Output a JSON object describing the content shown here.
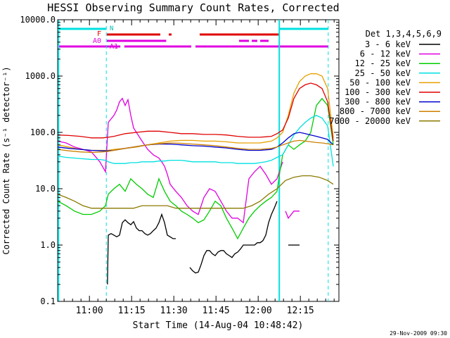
{
  "chart_data": {
    "type": "line",
    "title": "HESSI Observing Summary Count Rates, Corrected",
    "xlabel": "Start Time (14-Aug-04 10:48:42)",
    "ylabel": "Corrected Count Rate (s⁻¹ detector⁻¹)",
    "y_scale": "log",
    "ylim": [
      0.1,
      10000.0
    ],
    "xlim_minutes_after_start": [
      0,
      100
    ],
    "x_ticks": [
      "11:00",
      "11:15",
      "11:30",
      "11:45",
      "12:00",
      "12:15"
    ],
    "y_ticks": [
      "0.1",
      "1.0",
      "10.0",
      "100.0",
      "1000.0",
      "10000.0"
    ],
    "timestamp": "29-Nov-2009 09:30",
    "legend_title": "Det 1,3,4,5,6,9",
    "legend_position": "right",
    "flag_labels": [
      "N",
      "F",
      "A0",
      "A1"
    ],
    "series": [
      {
        "name": "3 - 6 keV",
        "color": "#000000",
        "segments": [
          {
            "x": [
              17.7,
              18,
              19,
              20,
              21,
              22,
              23,
              24,
              25,
              26,
              27,
              28,
              29,
              30,
              31,
              32,
              33,
              34,
              35,
              36,
              37,
              38,
              39,
              40,
              41,
              42
            ],
            "y": [
              0.2,
              1.5,
              1.6,
              1.5,
              1.4,
              1.5,
              2.5,
              2.8,
              2.5,
              2.3,
              2.6,
              2.0,
              1.8,
              1.8,
              1.6,
              1.5,
              1.6,
              1.8,
              2.0,
              2.5,
              3.5,
              2.5,
              1.5,
              1.4,
              1.3,
              1.3
            ]
          },
          {
            "x": [
              47,
              48,
              49,
              50,
              51,
              52,
              53,
              54,
              55,
              56,
              57,
              58,
              59,
              60,
              61,
              62,
              63,
              64,
              65,
              66,
              67,
              68,
              69,
              70,
              71,
              72,
              73,
              74,
              75,
              76,
              77,
              78
            ],
            "y": [
              0.4,
              0.35,
              0.32,
              0.33,
              0.45,
              0.65,
              0.8,
              0.8,
              0.7,
              0.65,
              0.75,
              0.8,
              0.8,
              0.7,
              0.65,
              0.6,
              0.7,
              0.75,
              0.85,
              1.0,
              1.0,
              1.0,
              1.0,
              1.0,
              1.1,
              1.1,
              1.2,
              1.5,
              2.5,
              3.5,
              4.5,
              6.0
            ]
          },
          {
            "x": [
              82,
              83,
              84,
              85,
              86
            ],
            "y": [
              1.0,
              1.0,
              1.0,
              1.0,
              1.0
            ]
          }
        ]
      },
      {
        "name": "6 - 12 keV",
        "color": "#e000e0",
        "segments": [
          {
            "x": [
              0,
              3,
              6,
              9,
              12,
              15,
              17,
              18,
              20,
              21,
              22,
              23,
              24,
              25,
              26,
              27,
              28,
              30,
              32,
              34,
              36,
              37,
              38,
              39,
              40,
              42,
              44,
              46,
              48,
              50,
              52,
              54,
              56,
              58,
              60,
              62,
              64,
              66,
              68,
              70,
              72,
              74,
              76,
              78,
              80
            ],
            "y": [
              70,
              65,
              55,
              50,
              45,
              30,
              20,
              150,
              200,
              250,
              350,
              400,
              300,
              380,
              200,
              120,
              100,
              70,
              50,
              40,
              35,
              30,
              25,
              18,
              12,
              9,
              7,
              5,
              4,
              3.5,
              7,
              10,
              9,
              6,
              4,
              3,
              3,
              2.5,
              15,
              20,
              25,
              18,
              12,
              15,
              30
            ]
          },
          {
            "x": [
              81,
              82,
              84,
              86
            ],
            "y": [
              4,
              3,
              4,
              4
            ]
          }
        ]
      },
      {
        "name": "12 - 25 keV",
        "color": "#00cc00",
        "segments": [
          {
            "x": [
              0,
              3,
              6,
              9,
              12,
              15,
              17,
              18,
              20,
              22,
              24,
              26,
              28,
              30,
              32,
              34,
              36,
              38,
              40,
              42,
              44,
              46,
              48,
              50,
              52,
              54,
              56,
              58,
              60,
              62,
              64,
              66,
              68,
              70,
              72,
              74,
              76,
              78,
              79,
              80,
              82,
              84,
              86,
              88,
              90,
              92,
              94,
              96,
              98
            ],
            "y": [
              6,
              5,
              4,
              3.5,
              3.5,
              4,
              5,
              8,
              10,
              12,
              9,
              15,
              12,
              10,
              8,
              7,
              15,
              9,
              6,
              5,
              4,
              3.5,
              3,
              2.5,
              2.8,
              4,
              6,
              5,
              3,
              2,
              1.3,
              2,
              3,
              4,
              5,
              6,
              7,
              9,
              20,
              40,
              60,
              50,
              60,
              70,
              100,
              300,
              400,
              300,
              60
            ]
          }
        ]
      },
      {
        "name": "25 - 50 keV",
        "color": "#00e0e0",
        "segments": [
          {
            "x": [
              0,
              3,
              6,
              9,
              12,
              15,
              17,
              18,
              20,
              22,
              24,
              26,
              28,
              30,
              32,
              34,
              36,
              38,
              40,
              42,
              44,
              46,
              48,
              50,
              52,
              54,
              56,
              58,
              60,
              62,
              64,
              66,
              68,
              70,
              72,
              74,
              76,
              78,
              80,
              82,
              84,
              86,
              88,
              90,
              92,
              94,
              96,
              98
            ],
            "y": [
              38,
              36,
              35,
              34,
              33,
              33,
              32,
              30,
              28,
              28,
              28,
              29,
              29,
              30,
              30,
              30,
              31,
              31,
              32,
              32,
              32,
              31,
              30,
              30,
              30,
              30,
              30,
              29,
              29,
              29,
              28,
              28,
              28,
              28,
              29,
              30,
              32,
              36,
              40,
              60,
              90,
              120,
              150,
              180,
              200,
              180,
              130,
              25
            ]
          }
        ]
      },
      {
        "name": "50 - 100 keV",
        "color": "#e6a000",
        "segments": [
          {
            "x": [
              0,
              4,
              8,
              12,
              16,
              18,
              20,
              24,
              28,
              32,
              36,
              40,
              44,
              48,
              52,
              56,
              60,
              64,
              68,
              72,
              76,
              78,
              80,
              82,
              84,
              86,
              88,
              90,
              92,
              94,
              96,
              98
            ],
            "y": [
              60,
              55,
              50,
              48,
              48,
              48,
              50,
              52,
              55,
              60,
              65,
              70,
              72,
              72,
              70,
              70,
              68,
              65,
              65,
              65,
              70,
              80,
              100,
              200,
              500,
              800,
              1000,
              1100,
              1100,
              1000,
              600,
              80
            ]
          }
        ]
      },
      {
        "name": "100 - 300 keV",
        "color": "#e00000",
        "segments": [
          {
            "x": [
              0,
              4,
              8,
              12,
              16,
              18,
              20,
              24,
              28,
              32,
              36,
              40,
              44,
              48,
              52,
              56,
              60,
              64,
              68,
              72,
              76,
              78,
              80,
              82,
              84,
              86,
              88,
              90,
              92,
              94,
              96,
              98
            ],
            "y": [
              90,
              88,
              85,
              80,
              80,
              82,
              85,
              95,
              100,
              105,
              105,
              100,
              95,
              95,
              92,
              92,
              90,
              85,
              82,
              82,
              85,
              95,
              110,
              180,
              400,
              600,
              700,
              750,
              700,
              600,
              350,
              70
            ]
          }
        ]
      },
      {
        "name": "300 - 800 keV",
        "color": "#0000cc",
        "segments": [
          {
            "x": [
              0,
              4,
              8,
              12,
              16,
              18,
              20,
              24,
              28,
              32,
              36,
              40,
              44,
              48,
              52,
              56,
              60,
              64,
              68,
              72,
              76,
              78,
              80,
              82,
              84,
              86,
              88,
              90,
              92,
              94,
              96,
              98
            ],
            "y": [
              55,
              52,
              50,
              48,
              47,
              47,
              48,
              52,
              56,
              60,
              62,
              62,
              60,
              58,
              57,
              55,
              53,
              50,
              48,
              48,
              50,
              55,
              65,
              80,
              95,
              100,
              95,
              90,
              85,
              80,
              75,
              60
            ]
          }
        ]
      },
      {
        "name": "800 - 7000 keV",
        "color": "#cc8000",
        "segments": [
          {
            "x": [
              0,
              4,
              8,
              12,
              16,
              18,
              20,
              24,
              28,
              32,
              36,
              40,
              44,
              48,
              52,
              56,
              60,
              64,
              68,
              72,
              76,
              78,
              80,
              82,
              84,
              86,
              88,
              90,
              92,
              94,
              96,
              98
            ],
            "y": [
              50,
              47,
              45,
              44,
              45,
              46,
              48,
              52,
              56,
              60,
              63,
              65,
              64,
              62,
              60,
              58,
              55,
              52,
              50,
              50,
              52,
              55,
              60,
              65,
              70,
              72,
              70,
              68,
              66,
              65,
              63,
              60
            ]
          }
        ]
      },
      {
        "name": "7000 - 20000 keV",
        "color": "#8b7a00",
        "segments": [
          {
            "x": [
              0,
              3,
              6,
              9,
              12,
              15,
              18,
              21,
              24,
              27,
              30,
              33,
              36,
              39,
              42,
              45,
              48,
              51,
              54,
              57,
              60,
              63,
              66,
              69,
              72,
              75,
              78,
              81,
              84,
              87,
              90,
              93,
              96,
              98
            ],
            "y": [
              8,
              7,
              6,
              5,
              4.5,
              4.5,
              4.5,
              4.5,
              4.5,
              4.5,
              5,
              5,
              5,
              5,
              4.5,
              4.5,
              4.5,
              4.5,
              4.5,
              4.5,
              4.5,
              4.5,
              4.5,
              5,
              6,
              8,
              10,
              14,
              16,
              17,
              17,
              16,
              14,
              12
            ]
          }
        ]
      }
    ]
  }
}
